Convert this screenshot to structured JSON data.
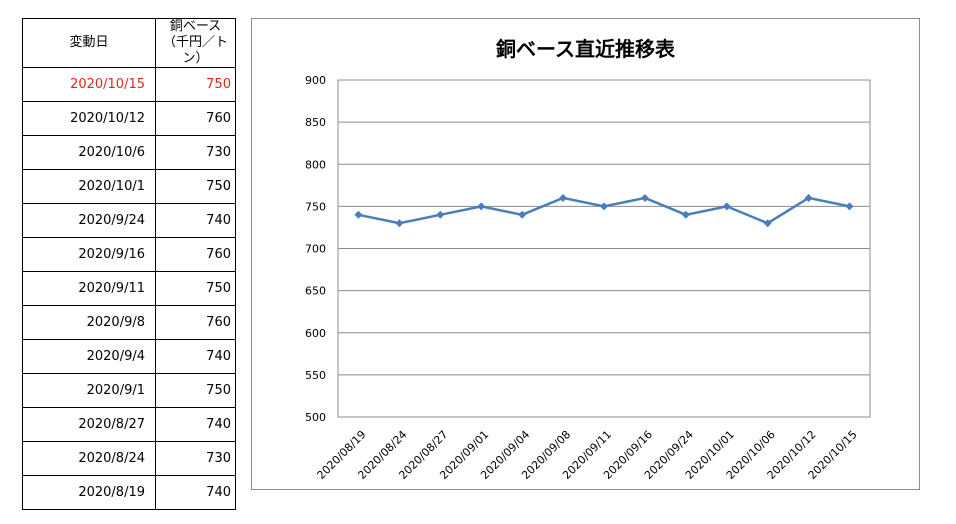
{
  "table": {
    "header": {
      "date_label": "変動日",
      "value_label_line1": "銅ベース",
      "value_label_line2": "（千円／トン）"
    },
    "rows": [
      {
        "date": "2020/10/15",
        "value": "750",
        "latest": true
      },
      {
        "date": "2020/10/12",
        "value": "760"
      },
      {
        "date": "2020/10/6",
        "value": "730"
      },
      {
        "date": "2020/10/1",
        "value": "750"
      },
      {
        "date": "2020/9/24",
        "value": "740"
      },
      {
        "date": "2020/9/16",
        "value": "760"
      },
      {
        "date": "2020/9/11",
        "value": "750"
      },
      {
        "date": "2020/9/8",
        "value": "760"
      },
      {
        "date": "2020/9/4",
        "value": "740"
      },
      {
        "date": "2020/9/1",
        "value": "750"
      },
      {
        "date": "2020/8/27",
        "value": "740"
      },
      {
        "date": "2020/8/24",
        "value": "730"
      },
      {
        "date": "2020/8/19",
        "value": "740"
      }
    ],
    "latest_color": "#e1261c"
  },
  "chart_data": {
    "type": "line",
    "title": "銅ベース直近推移表",
    "categories": [
      "2020/08/19",
      "2020/08/24",
      "2020/08/27",
      "2020/09/01",
      "2020/09/04",
      "2020/09/08",
      "2020/09/11",
      "2020/09/16",
      "2020/09/24",
      "2020/10/01",
      "2020/10/06",
      "2020/10/12",
      "2020/10/15"
    ],
    "series": [
      {
        "values": [
          740,
          730,
          740,
          750,
          740,
          760,
          750,
          760,
          740,
          750,
          730,
          760,
          750
        ],
        "color": "#4a7ebb"
      }
    ],
    "ylim": [
      500,
      900
    ],
    "yticks": [
      500,
      550,
      600,
      650,
      700,
      750,
      800,
      850,
      900
    ],
    "grid": true,
    "legend": "none"
  }
}
